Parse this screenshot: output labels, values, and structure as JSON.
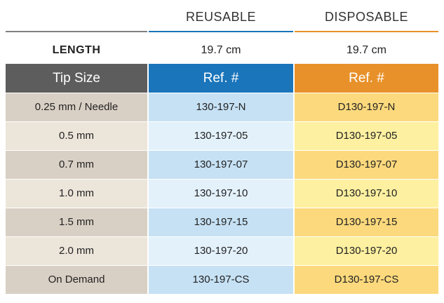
{
  "columns": {
    "reusable": "REUSABLE",
    "disposable": "DISPOSABLE"
  },
  "length_row": {
    "label": "LENGTH",
    "reusable": "19.7 cm",
    "disposable": "19.7 cm"
  },
  "table_header": {
    "tip_size": "Tip Size",
    "reusable_ref": "Ref. #",
    "disposable_ref": "Ref. #"
  },
  "rows": [
    {
      "tip_size": "0.25 mm / Needle",
      "reusable_ref": "130-197-N",
      "disposable_ref": "D130-197-N"
    },
    {
      "tip_size": "0.5 mm",
      "reusable_ref": "130-197-05",
      "disposable_ref": "D130-197-05"
    },
    {
      "tip_size": "0.7 mm",
      "reusable_ref": "130-197-07",
      "disposable_ref": "D130-197-07"
    },
    {
      "tip_size": "1.0 mm",
      "reusable_ref": "130-197-10",
      "disposable_ref": "D130-197-10"
    },
    {
      "tip_size": "1.5 mm",
      "reusable_ref": "130-197-15",
      "disposable_ref": "D130-197-15"
    },
    {
      "tip_size": "2.0 mm",
      "reusable_ref": "130-197-20",
      "disposable_ref": "D130-197-20"
    },
    {
      "tip_size": "On Demand",
      "reusable_ref": "130-197-CS",
      "disposable_ref": "D130-197-CS"
    }
  ],
  "colors": {
    "tip_header": "#5d5d5d",
    "reusable_header": "#1a75bb",
    "disposable_header": "#e8912a",
    "tip_row_dark": "#d9d0c5",
    "tip_row_light": "#ece5da",
    "reusable_row_dark": "#c6e1f4",
    "reusable_row_light": "#e3f1fb",
    "disposable_row_dark": "#fcd97c",
    "disposable_row_light": "#fdf0a0",
    "rule_gray": "#808080",
    "rule_blue": "#1a75bb",
    "rule_orange": "#e8912a"
  }
}
